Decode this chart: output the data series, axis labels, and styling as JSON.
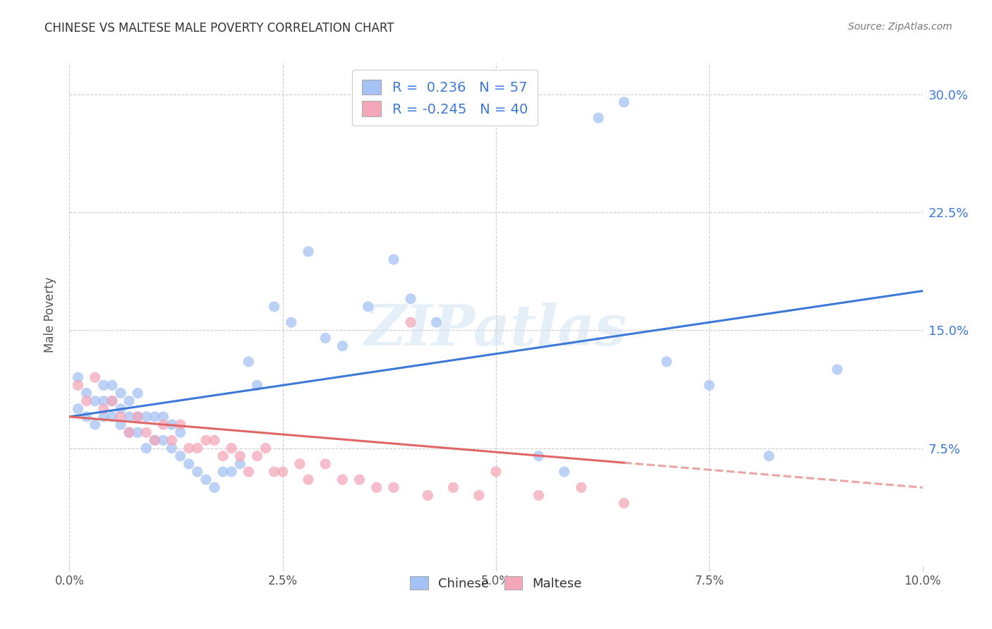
{
  "title": "CHINESE VS MALTESE MALE POVERTY CORRELATION CHART",
  "source": "Source: ZipAtlas.com",
  "ylabel": "Male Poverty",
  "ytick_labels": [
    "7.5%",
    "15.0%",
    "22.5%",
    "30.0%"
  ],
  "ytick_values": [
    0.075,
    0.15,
    0.225,
    0.3
  ],
  "xlim": [
    0.0,
    0.1
  ],
  "ylim": [
    0.0,
    0.32
  ],
  "chinese_color": "#a4c2f4",
  "maltese_color": "#f4a7b9",
  "trendline_chinese_color": "#3c78d8",
  "trendline_maltese_color": "#e06666",
  "background_color": "#ffffff",
  "watermark_text": "ZIPatlas",
  "chinese_x": [
    0.001,
    0.001,
    0.002,
    0.002,
    0.003,
    0.003,
    0.004,
    0.004,
    0.004,
    0.005,
    0.005,
    0.005,
    0.006,
    0.006,
    0.006,
    0.007,
    0.007,
    0.007,
    0.008,
    0.008,
    0.008,
    0.009,
    0.009,
    0.01,
    0.01,
    0.011,
    0.011,
    0.012,
    0.012,
    0.013,
    0.013,
    0.014,
    0.015,
    0.016,
    0.017,
    0.018,
    0.019,
    0.02,
    0.021,
    0.022,
    0.024,
    0.026,
    0.028,
    0.03,
    0.032,
    0.035,
    0.038,
    0.04,
    0.043,
    0.055,
    0.058,
    0.062,
    0.065,
    0.07,
    0.075,
    0.082,
    0.09
  ],
  "chinese_y": [
    0.12,
    0.1,
    0.11,
    0.095,
    0.105,
    0.09,
    0.115,
    0.105,
    0.095,
    0.115,
    0.105,
    0.095,
    0.11,
    0.1,
    0.09,
    0.105,
    0.095,
    0.085,
    0.11,
    0.095,
    0.085,
    0.095,
    0.075,
    0.095,
    0.08,
    0.095,
    0.08,
    0.09,
    0.075,
    0.085,
    0.07,
    0.065,
    0.06,
    0.055,
    0.05,
    0.06,
    0.06,
    0.065,
    0.13,
    0.115,
    0.165,
    0.155,
    0.2,
    0.145,
    0.14,
    0.165,
    0.195,
    0.17,
    0.155,
    0.07,
    0.06,
    0.285,
    0.295,
    0.13,
    0.115,
    0.07,
    0.125
  ],
  "maltese_x": [
    0.001,
    0.002,
    0.003,
    0.004,
    0.005,
    0.006,
    0.007,
    0.008,
    0.009,
    0.01,
    0.011,
    0.012,
    0.013,
    0.014,
    0.015,
    0.016,
    0.017,
    0.018,
    0.019,
    0.02,
    0.021,
    0.022,
    0.023,
    0.024,
    0.025,
    0.027,
    0.028,
    0.03,
    0.032,
    0.034,
    0.036,
    0.038,
    0.04,
    0.042,
    0.045,
    0.048,
    0.05,
    0.055,
    0.06,
    0.065
  ],
  "maltese_y": [
    0.115,
    0.105,
    0.12,
    0.1,
    0.105,
    0.095,
    0.085,
    0.095,
    0.085,
    0.08,
    0.09,
    0.08,
    0.09,
    0.075,
    0.075,
    0.08,
    0.08,
    0.07,
    0.075,
    0.07,
    0.06,
    0.07,
    0.075,
    0.06,
    0.06,
    0.065,
    0.055,
    0.065,
    0.055,
    0.055,
    0.05,
    0.05,
    0.155,
    0.045,
    0.05,
    0.045,
    0.06,
    0.045,
    0.05,
    0.04
  ],
  "trendline_chinese_x0": 0.0,
  "trendline_chinese_y0": 0.095,
  "trendline_chinese_x1": 0.1,
  "trendline_chinese_y1": 0.175,
  "trendline_maltese_x0": 0.0,
  "trendline_maltese_y0": 0.095,
  "trendline_maltese_x1": 0.1,
  "trendline_maltese_y1": 0.05,
  "trendline_maltese_solid_end": 0.065,
  "xticks": [
    0.0,
    0.025,
    0.05,
    0.075,
    0.1
  ],
  "xticklabels": [
    "0.0%",
    "2.5%",
    "5.0%",
    "7.5%",
    "10.0%"
  ]
}
